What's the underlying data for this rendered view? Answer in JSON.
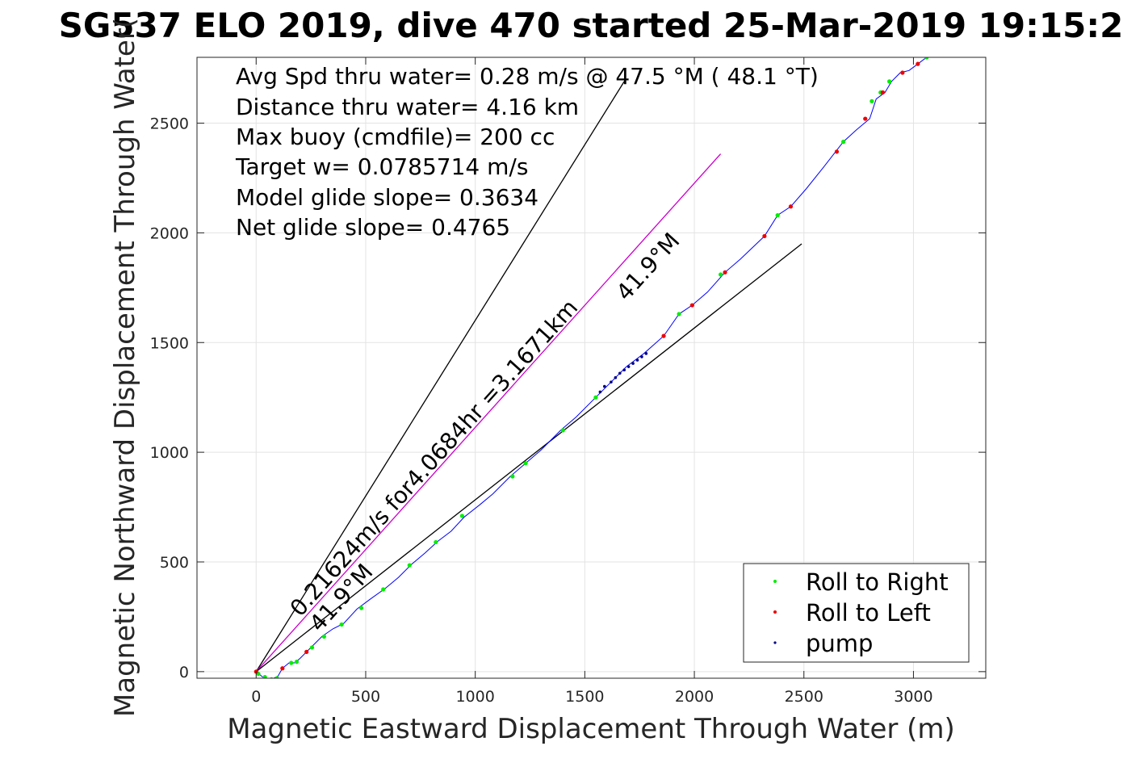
{
  "chart_data": {
    "type": "line",
    "title": "SG537 ELO 2019, dive 470 started 25-Mar-2019 19:15:2",
    "xlabel": "Magnetic Eastward Displacement Through Water (m)",
    "ylabel": "Magnetic Northward Displacement Through Water(",
    "xlim": [
      -270,
      3330
    ],
    "ylim": [
      -30,
      2800
    ],
    "xticks": [
      0,
      500,
      1000,
      1500,
      2000,
      2500,
      3000
    ],
    "yticks": [
      0,
      500,
      1000,
      1500,
      2000,
      2500
    ],
    "grid": true,
    "legend_position": "bottom-right",
    "annotations": [
      "Avg Spd thru water=  0.28 m/s @  47.5 °M ( 48.1 °T)",
      "Distance thru water=  4.16 km",
      "Max buoy (cmdfile)= 200 cc",
      "Target w= 0.0785714 m/s",
      "Model glide slope= 0.3634",
      "Net glide slope= 0.4765"
    ],
    "line_labels": {
      "speed": "0.21624m/s for4.0684hr =3.1671km",
      "heading_lower": "41.9°M",
      "heading_upper": "41.9°M"
    },
    "reference_lines": [
      {
        "color": "#000000",
        "x": [
          0,
          1680
        ],
        "y": [
          0,
          2690
        ]
      },
      {
        "color": "#cc00cc",
        "x": [
          0,
          2120
        ],
        "y": [
          0,
          2360
        ]
      },
      {
        "color": "#000000",
        "x": [
          0,
          2490
        ],
        "y": [
          0,
          1950
        ]
      }
    ],
    "track": {
      "color": "#0000ff",
      "x": [
        0,
        30,
        70,
        100,
        120,
        150,
        175,
        200,
        250,
        300,
        350,
        400,
        460,
        520,
        590,
        650,
        710,
        770,
        830,
        890,
        950,
        1020,
        1080,
        1160,
        1230,
        1300,
        1390,
        1460,
        1550,
        1620,
        1690,
        1770,
        1860,
        1930,
        1990,
        2060,
        2140,
        2210,
        2320,
        2380,
        2440,
        2510,
        2590,
        2680,
        2740,
        2800,
        2830,
        2870,
        2900,
        2940,
        2980,
        3020,
        3060
      ],
      "y": [
        0,
        -25,
        -35,
        -20,
        15,
        40,
        40,
        60,
        110,
        160,
        195,
        220,
        285,
        330,
        380,
        430,
        490,
        540,
        595,
        640,
        705,
        760,
        810,
        890,
        950,
        1010,
        1100,
        1160,
        1250,
        1320,
        1390,
        1450,
        1530,
        1630,
        1670,
        1730,
        1820,
        1880,
        1985,
        2080,
        2120,
        2200,
        2300,
        2415,
        2470,
        2520,
        2610,
        2640,
        2690,
        2730,
        2740,
        2770,
        2800
      ]
    },
    "series": [
      {
        "name": "Roll to Right",
        "color": "#00ee00",
        "x": [
          10,
          40,
          70,
          95,
          160,
          185,
          255,
          310,
          390,
          480,
          580,
          700,
          820,
          940,
          1170,
          1230,
          1400,
          1550,
          1930,
          2120,
          2380,
          2680,
          2810,
          2850,
          2890,
          3060
        ],
        "y": [
          -10,
          -25,
          -35,
          -30,
          40,
          45,
          110,
          160,
          215,
          290,
          375,
          485,
          590,
          710,
          890,
          950,
          1100,
          1250,
          1630,
          1810,
          2080,
          2415,
          2600,
          2640,
          2690,
          2800
        ]
      },
      {
        "name": "Roll to Left",
        "color": "#ee0000",
        "x": [
          0,
          120,
          230,
          1860,
          1990,
          2140,
          2320,
          2440,
          2650,
          2780,
          2860,
          2950,
          3020
        ],
        "y": [
          0,
          15,
          90,
          1530,
          1670,
          1820,
          1985,
          2120,
          2370,
          2520,
          2640,
          2730,
          2770
        ]
      },
      {
        "name": "pump",
        "color": "#000080",
        "x": [
          1570,
          1590,
          1620,
          1640,
          1660,
          1680,
          1700,
          1720,
          1740,
          1760,
          1780
        ],
        "y": [
          1275,
          1300,
          1320,
          1340,
          1360,
          1375,
          1390,
          1405,
          1420,
          1435,
          1450
        ]
      }
    ]
  }
}
